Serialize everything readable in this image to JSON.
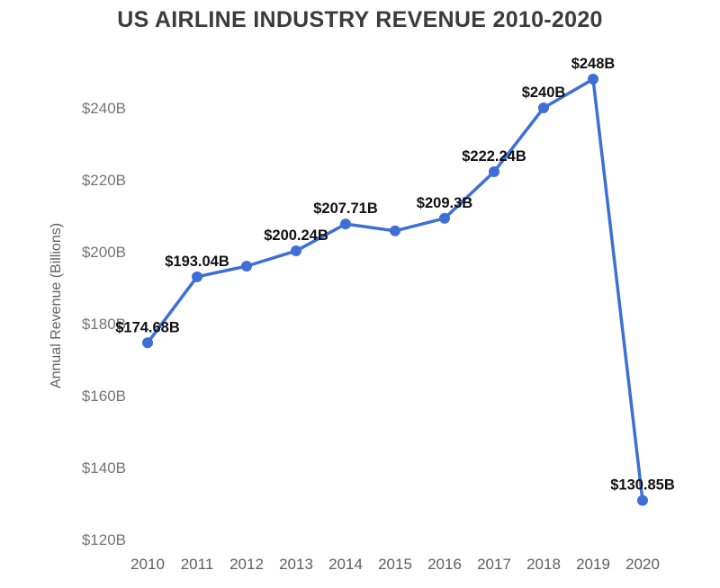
{
  "chart_data": {
    "type": "line",
    "title": "US AIRLINE INDUSTRY REVENUE 2010-2020",
    "xlabel": "",
    "ylabel": "Annual Revenue (Billions)",
    "categories": [
      "2010",
      "2011",
      "2012",
      "2013",
      "2014",
      "2015",
      "2016",
      "2017",
      "2018",
      "2019",
      "2020"
    ],
    "series": [
      {
        "name": "Annual Revenue",
        "values": [
          174.68,
          193.04,
          196.0,
          200.24,
          207.71,
          205.8,
          209.3,
          222.24,
          240,
          248,
          130.85
        ],
        "point_labels": [
          "$174.68B",
          "$193.04B",
          "",
          "$200.24B",
          "$207.71B",
          "",
          "$209.3B",
          "$222.24B",
          "$240B",
          "$248B",
          "$130.85B"
        ]
      }
    ],
    "y_ticks": [
      {
        "value": 120,
        "label": "$120B"
      },
      {
        "value": 140,
        "label": "$140B"
      },
      {
        "value": 160,
        "label": "$160B"
      },
      {
        "value": 180,
        "label": "$180B"
      },
      {
        "value": 200,
        "label": "$200B"
      },
      {
        "value": 220,
        "label": "$220B"
      },
      {
        "value": 240,
        "label": "$240B"
      }
    ],
    "ylim": [
      113,
      255
    ],
    "grid": false,
    "legend_position": "none",
    "colors": {
      "line": "#3D6FD6",
      "point": "#3D6FD6",
      "data_label": "#111111",
      "y_tick_label": "#757575",
      "x_tick_label": "#5f5f5f",
      "axis_title": "#616161",
      "title": "#3c3c3c",
      "background": "#ffffff"
    }
  }
}
